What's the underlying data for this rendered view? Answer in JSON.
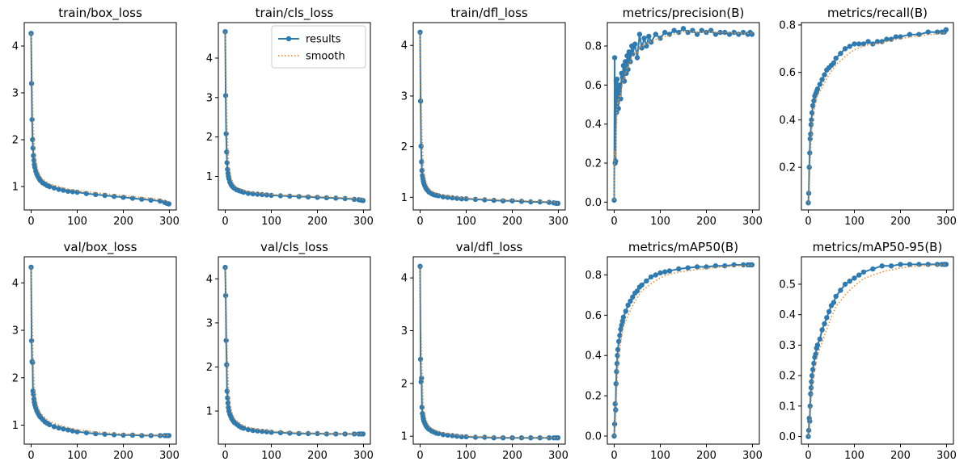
{
  "figure": {
    "legend": {
      "results": "results",
      "smooth": "smooth",
      "location": "upper-right",
      "panel": 1
    },
    "colors": {
      "results": "#2f7bb0",
      "smooth": "#f08c2e",
      "axis": "#000000"
    }
  },
  "chart_data": [
    {
      "type": "line",
      "title": "train/box_loss",
      "x": [
        0,
        1,
        2,
        3,
        4,
        5,
        6,
        7,
        8,
        10,
        12,
        14,
        16,
        18,
        20,
        25,
        30,
        35,
        40,
        50,
        60,
        70,
        80,
        90,
        100,
        120,
        140,
        160,
        180,
        200,
        220,
        240,
        260,
        280,
        290,
        295,
        299
      ],
      "y": [
        4.27,
        3.2,
        2.43,
        2.0,
        1.82,
        1.66,
        1.56,
        1.47,
        1.41,
        1.33,
        1.27,
        1.23,
        1.19,
        1.16,
        1.13,
        1.08,
        1.05,
        1.02,
        1.0,
        0.97,
        0.94,
        0.92,
        0.9,
        0.89,
        0.88,
        0.85,
        0.83,
        0.81,
        0.79,
        0.77,
        0.75,
        0.73,
        0.71,
        0.69,
        0.66,
        0.64,
        0.63
      ],
      "xlim": [
        -15,
        315
      ],
      "ylim": [
        0.5,
        4.5
      ],
      "xticks": [
        0,
        100,
        200,
        300
      ],
      "yticks": [
        1,
        2,
        3,
        4
      ],
      "grid": false
    },
    {
      "type": "line",
      "title": "train/cls_loss",
      "x": [
        0,
        1,
        2,
        3,
        4,
        5,
        6,
        7,
        8,
        10,
        12,
        14,
        16,
        18,
        20,
        25,
        30,
        35,
        40,
        50,
        60,
        70,
        80,
        90,
        100,
        120,
        140,
        160,
        180,
        200,
        220,
        240,
        260,
        280,
        290,
        295,
        299
      ],
      "y": [
        4.67,
        3.05,
        2.08,
        1.62,
        1.35,
        1.18,
        1.08,
        1.0,
        0.94,
        0.86,
        0.81,
        0.77,
        0.74,
        0.72,
        0.7,
        0.66,
        0.64,
        0.62,
        0.6,
        0.57,
        0.56,
        0.55,
        0.54,
        0.53,
        0.52,
        0.51,
        0.5,
        0.49,
        0.48,
        0.47,
        0.46,
        0.45,
        0.44,
        0.42,
        0.41,
        0.4,
        0.39
      ],
      "xlim": [
        -15,
        315
      ],
      "ylim": [
        0.15,
        4.9
      ],
      "xticks": [
        0,
        100,
        200,
        300
      ],
      "yticks": [
        1,
        2,
        3,
        4
      ],
      "grid": false
    },
    {
      "type": "line",
      "title": "train/dfl_loss",
      "x": [
        0,
        1,
        2,
        3,
        4,
        5,
        6,
        7,
        8,
        10,
        12,
        14,
        16,
        18,
        20,
        25,
        30,
        35,
        40,
        50,
        60,
        70,
        80,
        90,
        100,
        120,
        140,
        160,
        180,
        200,
        220,
        240,
        260,
        280,
        290,
        295,
        299
      ],
      "y": [
        4.26,
        2.9,
        2.01,
        1.7,
        1.53,
        1.43,
        1.37,
        1.32,
        1.28,
        1.23,
        1.19,
        1.16,
        1.14,
        1.12,
        1.1,
        1.07,
        1.05,
        1.04,
        1.03,
        1.01,
        1.0,
        0.99,
        0.98,
        0.97,
        0.97,
        0.96,
        0.95,
        0.94,
        0.93,
        0.93,
        0.92,
        0.91,
        0.91,
        0.9,
        0.89,
        0.88,
        0.88
      ],
      "xlim": [
        -15,
        315
      ],
      "ylim": [
        0.75,
        4.45
      ],
      "xticks": [
        0,
        100,
        200,
        300
      ],
      "yticks": [
        1,
        2,
        3,
        4
      ],
      "grid": false
    },
    {
      "type": "line",
      "title": "metrics/precision(B)",
      "x": [
        0,
        1,
        2,
        3,
        4,
        5,
        6,
        7,
        8,
        9,
        10,
        12,
        14,
        16,
        18,
        20,
        22,
        24,
        26,
        28,
        30,
        32,
        35,
        38,
        40,
        45,
        50,
        55,
        60,
        65,
        70,
        75,
        80,
        90,
        100,
        110,
        120,
        130,
        140,
        150,
        160,
        170,
        180,
        190,
        200,
        210,
        220,
        230,
        240,
        250,
        260,
        270,
        280,
        290,
        295,
        299
      ],
      "y": [
        0.01,
        0.74,
        0.2,
        0.21,
        0.62,
        0.46,
        0.63,
        0.51,
        0.58,
        0.48,
        0.56,
        0.6,
        0.53,
        0.66,
        0.64,
        0.7,
        0.62,
        0.72,
        0.66,
        0.75,
        0.68,
        0.77,
        0.72,
        0.8,
        0.76,
        0.81,
        0.74,
        0.86,
        0.79,
        0.84,
        0.8,
        0.85,
        0.82,
        0.86,
        0.84,
        0.87,
        0.86,
        0.88,
        0.87,
        0.89,
        0.87,
        0.88,
        0.86,
        0.88,
        0.87,
        0.88,
        0.86,
        0.87,
        0.87,
        0.86,
        0.87,
        0.86,
        0.87,
        0.86,
        0.87,
        0.86
      ],
      "xlim": [
        -15,
        315
      ],
      "ylim": [
        -0.04,
        0.92
      ],
      "xticks": [
        0,
        100,
        200,
        300
      ],
      "yticks": [
        0.0,
        0.2,
        0.4,
        0.6,
        0.8
      ],
      "grid": false
    },
    {
      "type": "line",
      "title": "metrics/recall(B)",
      "x": [
        0,
        1,
        2,
        3,
        4,
        5,
        6,
        7,
        8,
        10,
        12,
        14,
        16,
        18,
        20,
        25,
        30,
        35,
        40,
        45,
        50,
        55,
        60,
        70,
        80,
        90,
        100,
        110,
        120,
        130,
        140,
        150,
        160,
        170,
        180,
        190,
        200,
        220,
        240,
        260,
        280,
        290,
        295,
        299
      ],
      "y": [
        0.05,
        0.09,
        0.2,
        0.26,
        0.32,
        0.34,
        0.38,
        0.4,
        0.43,
        0.46,
        0.48,
        0.5,
        0.51,
        0.52,
        0.53,
        0.55,
        0.57,
        0.59,
        0.61,
        0.62,
        0.63,
        0.64,
        0.66,
        0.68,
        0.7,
        0.71,
        0.72,
        0.72,
        0.72,
        0.73,
        0.72,
        0.73,
        0.73,
        0.74,
        0.74,
        0.75,
        0.75,
        0.76,
        0.76,
        0.77,
        0.77,
        0.77,
        0.77,
        0.78
      ],
      "xlim": [
        -15,
        315
      ],
      "ylim": [
        0.02,
        0.81
      ],
      "xticks": [
        0,
        100,
        200,
        300
      ],
      "yticks": [
        0.2,
        0.4,
        0.6,
        0.8
      ],
      "grid": false
    },
    {
      "type": "line",
      "title": "val/box_loss",
      "x": [
        0,
        1,
        2,
        3,
        4,
        5,
        6,
        7,
        8,
        10,
        12,
        14,
        16,
        18,
        20,
        25,
        30,
        35,
        40,
        50,
        60,
        70,
        80,
        90,
        100,
        120,
        140,
        160,
        180,
        200,
        220,
        240,
        260,
        280,
        290,
        295,
        299
      ],
      "y": [
        4.33,
        2.78,
        2.34,
        2.32,
        1.72,
        1.65,
        1.55,
        1.48,
        1.43,
        1.37,
        1.31,
        1.27,
        1.23,
        1.2,
        1.17,
        1.12,
        1.07,
        1.04,
        1.01,
        0.97,
        0.94,
        0.92,
        0.9,
        0.88,
        0.86,
        0.84,
        0.82,
        0.81,
        0.8,
        0.79,
        0.79,
        0.78,
        0.78,
        0.78,
        0.78,
        0.78,
        0.78
      ],
      "xlim": [
        -15,
        315
      ],
      "ylim": [
        0.6,
        4.55
      ],
      "xticks": [
        0,
        100,
        200,
        300
      ],
      "yticks": [
        1,
        2,
        3,
        4
      ],
      "grid": false
    },
    {
      "type": "line",
      "title": "val/cls_loss",
      "x": [
        0,
        1,
        2,
        3,
        4,
        5,
        6,
        7,
        8,
        10,
        12,
        14,
        16,
        18,
        20,
        25,
        30,
        35,
        40,
        50,
        60,
        70,
        80,
        90,
        100,
        120,
        140,
        160,
        180,
        200,
        220,
        240,
        260,
        280,
        290,
        295,
        299
      ],
      "y": [
        4.26,
        3.62,
        2.6,
        2.05,
        1.45,
        1.3,
        1.18,
        1.08,
        1.0,
        0.93,
        0.88,
        0.83,
        0.8,
        0.77,
        0.74,
        0.7,
        0.66,
        0.63,
        0.61,
        0.58,
        0.56,
        0.55,
        0.54,
        0.53,
        0.52,
        0.51,
        0.5,
        0.49,
        0.49,
        0.49,
        0.48,
        0.48,
        0.48,
        0.48,
        0.48,
        0.48,
        0.48
      ],
      "xlim": [
        -15,
        315
      ],
      "ylim": [
        0.25,
        4.5
      ],
      "xticks": [
        0,
        100,
        200,
        300
      ],
      "yticks": [
        1,
        2,
        3,
        4
      ],
      "grid": false
    },
    {
      "type": "line",
      "title": "val/dfl_loss",
      "x": [
        0,
        1,
        2,
        3,
        4,
        5,
        6,
        7,
        8,
        10,
        12,
        14,
        16,
        18,
        20,
        25,
        30,
        35,
        40,
        50,
        60,
        70,
        80,
        90,
        100,
        120,
        140,
        160,
        180,
        200,
        220,
        240,
        260,
        280,
        290,
        295,
        299
      ],
      "y": [
        4.22,
        2.46,
        2.03,
        2.1,
        1.55,
        1.43,
        1.38,
        1.33,
        1.29,
        1.25,
        1.21,
        1.18,
        1.16,
        1.14,
        1.13,
        1.1,
        1.08,
        1.06,
        1.05,
        1.03,
        1.02,
        1.01,
        1.0,
        0.99,
        0.99,
        0.98,
        0.98,
        0.97,
        0.97,
        0.97,
        0.97,
        0.97,
        0.97,
        0.97,
        0.97,
        0.97,
        0.97
      ],
      "xlim": [
        -15,
        315
      ],
      "ylim": [
        0.85,
        4.4
      ],
      "xticks": [
        0,
        100,
        200,
        300
      ],
      "yticks": [
        1,
        2,
        3,
        4
      ],
      "grid": false
    },
    {
      "type": "line",
      "title": "metrics/mAP50(B)",
      "x": [
        0,
        1,
        2,
        3,
        4,
        5,
        6,
        7,
        8,
        10,
        12,
        14,
        16,
        18,
        20,
        25,
        30,
        35,
        40,
        45,
        50,
        55,
        60,
        70,
        80,
        90,
        100,
        110,
        120,
        140,
        160,
        180,
        200,
        220,
        240,
        260,
        280,
        290,
        295,
        299
      ],
      "y": [
        0.0,
        0.06,
        0.16,
        0.13,
        0.26,
        0.32,
        0.36,
        0.4,
        0.43,
        0.47,
        0.5,
        0.53,
        0.55,
        0.57,
        0.59,
        0.62,
        0.65,
        0.67,
        0.69,
        0.71,
        0.72,
        0.74,
        0.75,
        0.77,
        0.79,
        0.8,
        0.81,
        0.815,
        0.82,
        0.83,
        0.835,
        0.84,
        0.84,
        0.845,
        0.845,
        0.85,
        0.85,
        0.85,
        0.85,
        0.85
      ],
      "xlim": [
        -15,
        315
      ],
      "ylim": [
        -0.04,
        0.89
      ],
      "xticks": [
        0,
        100,
        200,
        300
      ],
      "yticks": [
        0.0,
        0.2,
        0.4,
        0.6,
        0.8
      ],
      "grid": false
    },
    {
      "type": "line",
      "title": "metrics/mAP50-95(B)",
      "x": [
        0,
        1,
        2,
        3,
        4,
        5,
        6,
        7,
        8,
        10,
        12,
        14,
        16,
        18,
        20,
        25,
        30,
        35,
        40,
        45,
        50,
        55,
        60,
        70,
        80,
        90,
        100,
        110,
        120,
        140,
        160,
        180,
        200,
        220,
        240,
        260,
        280,
        290,
        295,
        299
      ],
      "y": [
        0.0,
        0.02,
        0.06,
        0.05,
        0.1,
        0.14,
        0.16,
        0.18,
        0.2,
        0.22,
        0.24,
        0.26,
        0.27,
        0.29,
        0.3,
        0.32,
        0.35,
        0.37,
        0.39,
        0.41,
        0.43,
        0.44,
        0.46,
        0.48,
        0.5,
        0.51,
        0.52,
        0.53,
        0.54,
        0.55,
        0.56,
        0.56,
        0.565,
        0.565,
        0.565,
        0.565,
        0.565,
        0.565,
        0.565,
        0.565
      ],
      "xlim": [
        -15,
        315
      ],
      "ylim": [
        -0.025,
        0.59
      ],
      "xticks": [
        0,
        100,
        200,
        300
      ],
      "yticks": [
        0.0,
        0.1,
        0.2,
        0.3,
        0.4,
        0.5
      ],
      "grid": false
    }
  ]
}
